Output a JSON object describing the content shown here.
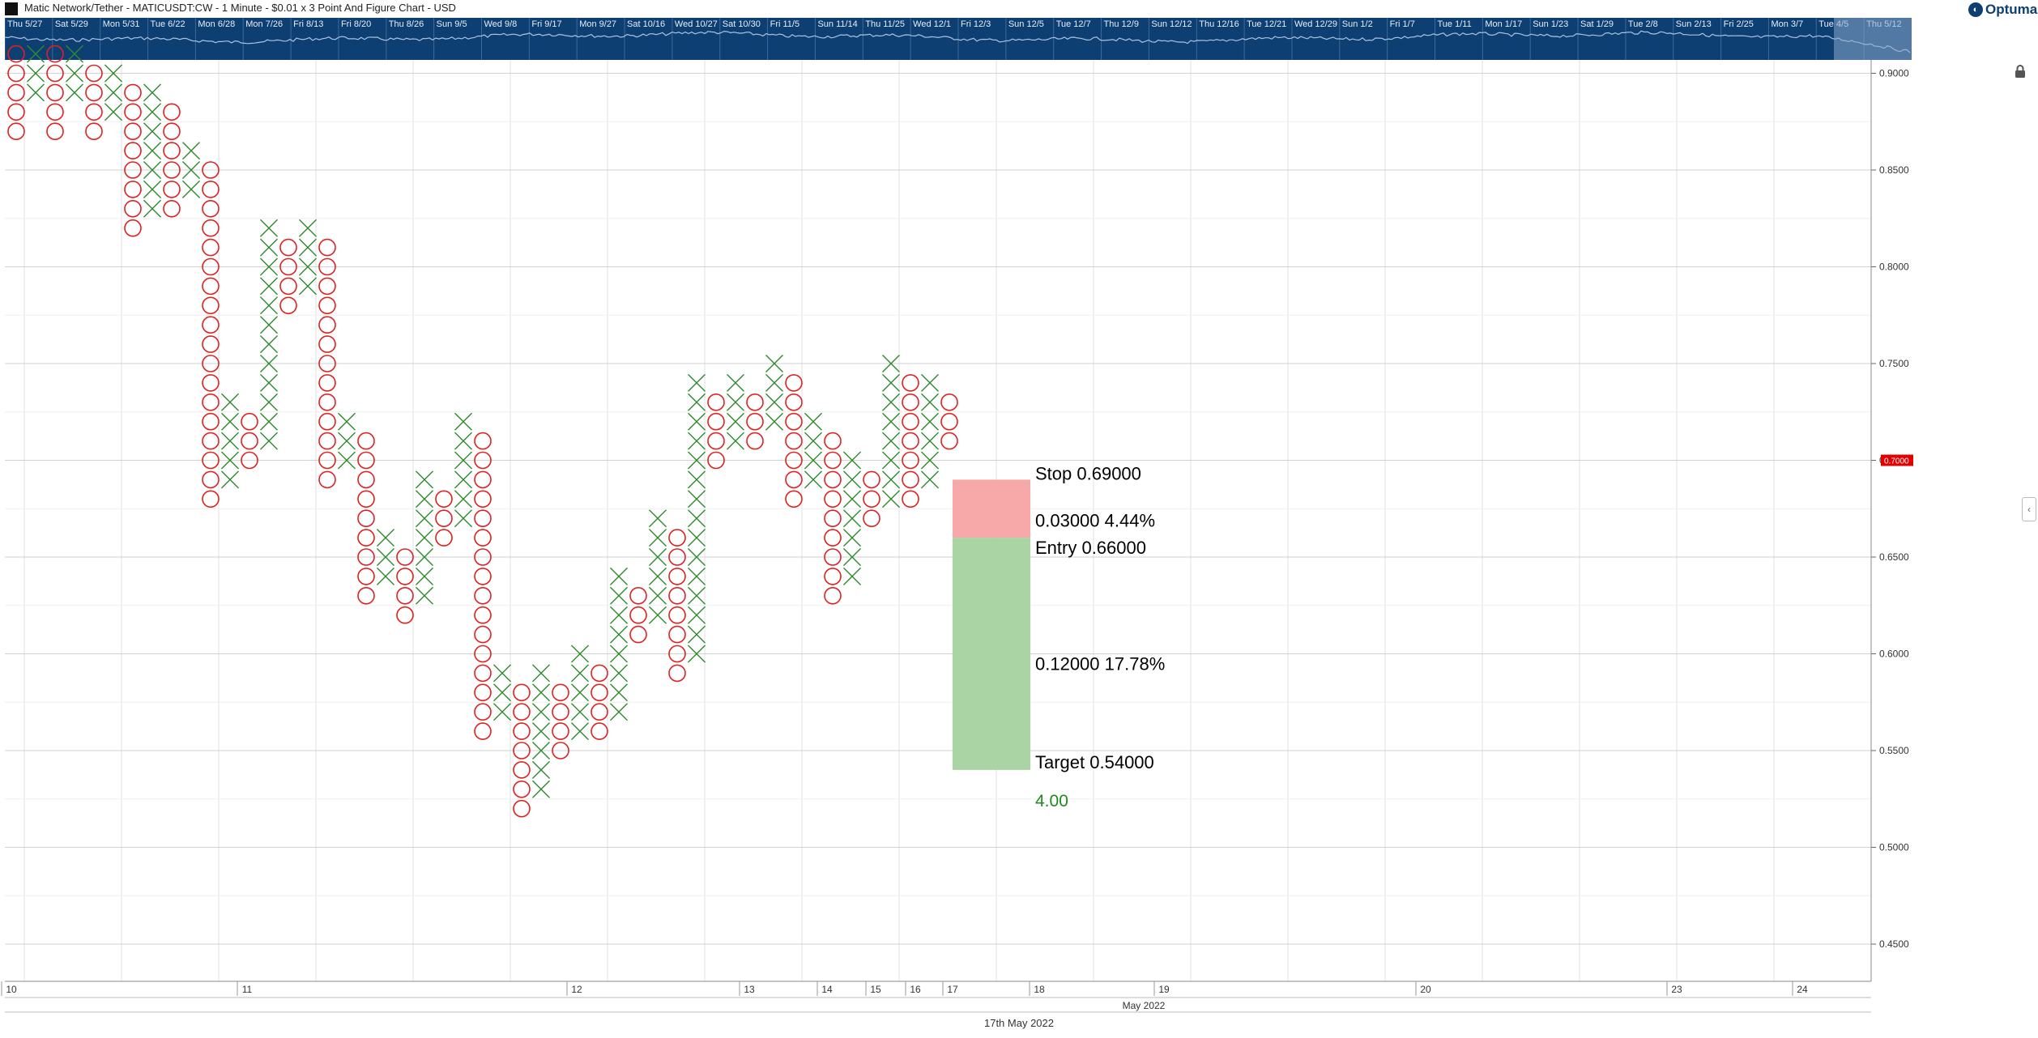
{
  "window": {
    "title": "Matic Network/Tether - MATICUSDT:CW - 1 Minute - $0.01 x 3 Point And Figure Chart - USD",
    "brand": "Optuma",
    "footer_date": "17th May 2022"
  },
  "navigator": {
    "dates": [
      "Thu 5/27",
      "Sat 5/29",
      "Mon 5/31",
      "Tue 6/22",
      "Mon 6/28",
      "Mon 7/26",
      "Fri 8/13",
      "Fri 8/20",
      "Thu 8/26",
      "Sun 9/5",
      "Wed 9/8",
      "Fri 9/17",
      "Mon 9/27",
      "Sat 10/16",
      "Wed 10/27",
      "Sat 10/30",
      "Fri 11/5",
      "Sun 11/14",
      "Thu 11/25",
      "Wed 12/1",
      "Fri 12/3",
      "Sun 12/5",
      "Tue 12/7",
      "Thu 12/9",
      "Sun 12/12",
      "Thu 12/16",
      "Tue 12/21",
      "Wed 12/29",
      "Sun 1/2",
      "Fri 1/7",
      "Tue 1/11",
      "Mon 1/17",
      "Sun 1/23",
      "Sat 1/29",
      "Tue 2/8",
      "Sun 2/13",
      "Fri 2/25",
      "Mon 3/7",
      "Tue 4/5",
      "Thu 5/12"
    ]
  },
  "colors": {
    "x_color": "#2e8b2e",
    "o_color": "#e02020",
    "grid": "#e2e2e2",
    "stop_zone": "#f7a8a8",
    "target_zone": "#aad4a4",
    "price_tag": "#e00000",
    "navigator_bg": "#0e3f73"
  },
  "chart_data": {
    "type": "point_and_figure",
    "box_size": 0.01,
    "reversal": 3,
    "ylim": [
      0.44,
      0.91
    ],
    "y_ticks": [
      "0.9000",
      "0.8500",
      "0.8000",
      "0.7500",
      "0.7000",
      "0.6500",
      "0.6000",
      "0.5500",
      "0.5000",
      "0.4500"
    ],
    "last_price": "0.7000",
    "x_axis_labels": [
      "10",
      "11",
      "12",
      "13",
      "14",
      "15",
      "16",
      "17",
      "18",
      "19",
      "20",
      "23",
      "24"
    ],
    "x_axis_month": "May 2022",
    "columns": [
      {
        "type": "O",
        "high": 0.91,
        "low": 0.87
      },
      {
        "type": "X",
        "low": 0.89,
        "high": 0.91
      },
      {
        "type": "O",
        "high": 0.91,
        "low": 0.87
      },
      {
        "type": "X",
        "low": 0.89,
        "high": 0.91
      },
      {
        "type": "O",
        "high": 0.9,
        "low": 0.87
      },
      {
        "type": "X",
        "low": 0.88,
        "high": 0.9
      },
      {
        "type": "O",
        "high": 0.89,
        "low": 0.82
      },
      {
        "type": "X",
        "low": 0.83,
        "high": 0.89
      },
      {
        "type": "O",
        "high": 0.88,
        "low": 0.83
      },
      {
        "type": "X",
        "low": 0.84,
        "high": 0.86
      },
      {
        "type": "O",
        "high": 0.85,
        "low": 0.68
      },
      {
        "type": "X",
        "low": 0.69,
        "high": 0.73
      },
      {
        "type": "O",
        "high": 0.72,
        "low": 0.7
      },
      {
        "type": "X",
        "low": 0.71,
        "high": 0.82
      },
      {
        "type": "O",
        "high": 0.81,
        "low": 0.78
      },
      {
        "type": "X",
        "low": 0.79,
        "high": 0.82
      },
      {
        "type": "O",
        "high": 0.81,
        "low": 0.69
      },
      {
        "type": "X",
        "low": 0.7,
        "high": 0.72
      },
      {
        "type": "O",
        "high": 0.71,
        "low": 0.63
      },
      {
        "type": "X",
        "low": 0.64,
        "high": 0.66
      },
      {
        "type": "O",
        "high": 0.65,
        "low": 0.62
      },
      {
        "type": "X",
        "low": 0.63,
        "high": 0.69
      },
      {
        "type": "O",
        "high": 0.68,
        "low": 0.66
      },
      {
        "type": "X",
        "low": 0.67,
        "high": 0.72
      },
      {
        "type": "O",
        "high": 0.71,
        "low": 0.56
      },
      {
        "type": "X",
        "low": 0.57,
        "high": 0.59
      },
      {
        "type": "O",
        "high": 0.58,
        "low": 0.52
      },
      {
        "type": "X",
        "low": 0.53,
        "high": 0.59
      },
      {
        "type": "O",
        "high": 0.58,
        "low": 0.55
      },
      {
        "type": "X",
        "low": 0.56,
        "high": 0.6
      },
      {
        "type": "O",
        "high": 0.59,
        "low": 0.56
      },
      {
        "type": "X",
        "low": 0.57,
        "high": 0.64
      },
      {
        "type": "O",
        "high": 0.63,
        "low": 0.61
      },
      {
        "type": "X",
        "low": 0.62,
        "high": 0.67
      },
      {
        "type": "O",
        "high": 0.66,
        "low": 0.59
      },
      {
        "type": "X",
        "low": 0.6,
        "high": 0.74
      },
      {
        "type": "O",
        "high": 0.73,
        "low": 0.7
      },
      {
        "type": "X",
        "low": 0.71,
        "high": 0.74
      },
      {
        "type": "O",
        "high": 0.73,
        "low": 0.71
      },
      {
        "type": "X",
        "low": 0.72,
        "high": 0.75
      },
      {
        "type": "O",
        "high": 0.74,
        "low": 0.68
      },
      {
        "type": "X",
        "low": 0.69,
        "high": 0.72
      },
      {
        "type": "O",
        "high": 0.71,
        "low": 0.63
      },
      {
        "type": "X",
        "low": 0.64,
        "high": 0.7
      },
      {
        "type": "O",
        "high": 0.69,
        "low": 0.67
      },
      {
        "type": "X",
        "low": 0.68,
        "high": 0.75
      },
      {
        "type": "O",
        "high": 0.74,
        "low": 0.68
      },
      {
        "type": "X",
        "low": 0.69,
        "high": 0.74
      },
      {
        "type": "O",
        "high": 0.73,
        "low": 0.71
      }
    ],
    "trade": {
      "stop_label": "Stop",
      "stop": "0.69000",
      "risk": "0.03000",
      "risk_pct": "4.44%",
      "entry_label": "Entry",
      "entry": "0.66000",
      "reward": "0.12000",
      "reward_pct": "17.78%",
      "target_label": "Target",
      "target": "0.54000",
      "ratio": "4.00"
    }
  }
}
